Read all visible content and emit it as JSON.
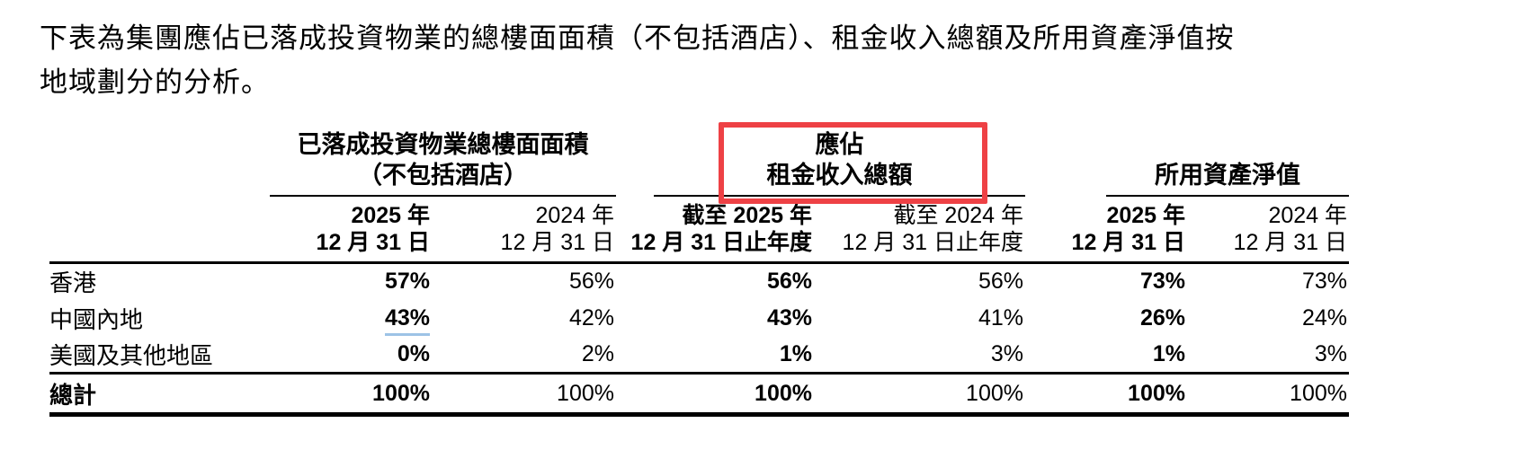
{
  "intro": {
    "line1": "下表為集團應佔已落成投資物業的總樓面面積（不包括酒店）、租金收入總額及所用資產淨值按",
    "line2": "地域劃分的分析。"
  },
  "table": {
    "groups": [
      {
        "title_line1": "已落成投資物業總樓面面積",
        "title_line2": "（不包括酒店）",
        "highlighted": false
      },
      {
        "title_line1": "應佔",
        "title_line2": "租金收入總額",
        "highlighted": true
      },
      {
        "title_line1": "所用資產淨值",
        "title_line2": "",
        "highlighted": false
      }
    ],
    "columns": [
      {
        "line1": "2025 年",
        "line2": "12 月 31 日",
        "bold": true
      },
      {
        "line1": "2024 年",
        "line2": "12 月 31 日",
        "bold": false
      },
      {
        "line1": "截至 2025 年",
        "line2": "12 月 31 日止年度",
        "bold": true
      },
      {
        "line1": "截至 2024 年",
        "line2": "12 月 31 日止年度",
        "bold": false
      },
      {
        "line1": "2025 年",
        "line2": "12 月 31 日",
        "bold": true
      },
      {
        "line1": "2024 年",
        "line2": "12 月 31 日",
        "bold": false
      }
    ],
    "rows": [
      {
        "label": "香港",
        "values": [
          "57%",
          "56%",
          "56%",
          "56%",
          "73%",
          "73%"
        ],
        "total": false
      },
      {
        "label": "中國內地",
        "values": [
          "43%",
          "42%",
          "43%",
          "41%",
          "26%",
          "24%"
        ],
        "total": false,
        "underline_col": 0
      },
      {
        "label": "美國及其他地區",
        "values": [
          "0%",
          "2%",
          "1%",
          "3%",
          "1%",
          "3%"
        ],
        "total": false
      },
      {
        "label": "總計",
        "values": [
          "100%",
          "100%",
          "100%",
          "100%",
          "100%",
          "100%"
        ],
        "total": true
      }
    ]
  },
  "annotations": {
    "highlight_box_color": "#ee4145",
    "value_underline_color": "#9dc3e6"
  }
}
